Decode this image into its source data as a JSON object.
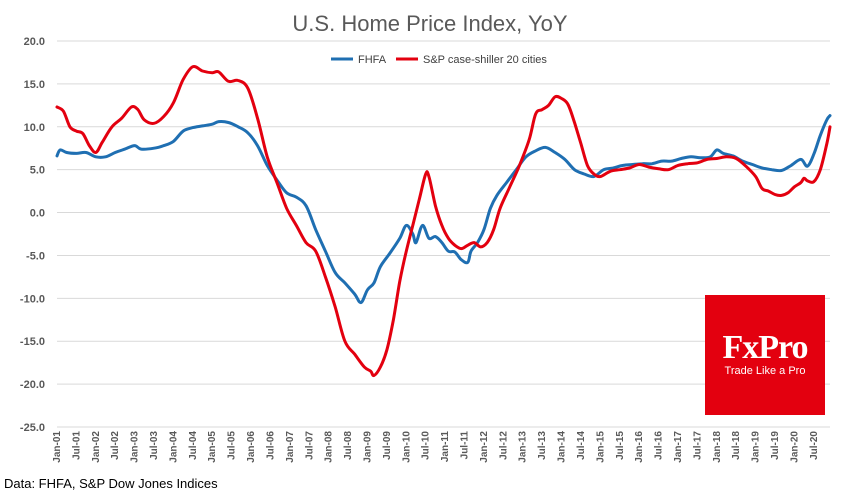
{
  "chart_data": {
    "type": "line",
    "title": "U.S. Home Price Index, YoY",
    "xlabel": "",
    "ylabel": "",
    "ylim": [
      -25,
      20
    ],
    "yticks": [
      "20.0",
      "15.0",
      "10.0",
      "5.0",
      "0.0",
      "-5.0",
      "-10.0",
      "-15.0",
      "-20.0",
      "-25.0"
    ],
    "x_start": "Jan-01",
    "x_end": "Dec-20",
    "x_tick_labels": [
      "Jan-01",
      "Jul-01",
      "Jan-02",
      "Jul-02",
      "Jan-03",
      "Jul-03",
      "Jan-04",
      "Jul-04",
      "Jan-05",
      "Jul-05",
      "Jan-06",
      "Jul-06",
      "Jan-07",
      "Jul-07",
      "Jan-08",
      "Jul-08",
      "Jan-09",
      "Jul-09",
      "Jan-10",
      "Jul-10",
      "Jan-11",
      "Jul-11",
      "Jan-12",
      "Jul-12",
      "Jan-13",
      "Jul-13",
      "Jan-14",
      "Jul-14",
      "Jan-15",
      "Jul-15",
      "Jan-16",
      "Jul-16",
      "Jan-17",
      "Jul-17",
      "Jan-18",
      "Jul-18",
      "Jan-19",
      "Jul-19",
      "Jan-20",
      "Jul-20"
    ],
    "grid": "horizontal",
    "legend_position": "top",
    "series": [
      {
        "name": "FHFA",
        "color": "#1f6fb2",
        "points": [
          [
            "Jan-01",
            6.6
          ],
          [
            "Feb-01",
            7.3
          ],
          [
            "Apr-01",
            7.0
          ],
          [
            "Jul-01",
            6.9
          ],
          [
            "Oct-01",
            7.0
          ],
          [
            "Jan-02",
            6.5
          ],
          [
            "Apr-02",
            6.5
          ],
          [
            "Jul-02",
            7.0
          ],
          [
            "Oct-02",
            7.4
          ],
          [
            "Jan-03",
            7.8
          ],
          [
            "Mar-03",
            7.4
          ],
          [
            "Jul-03",
            7.5
          ],
          [
            "Oct-03",
            7.8
          ],
          [
            "Jan-04",
            8.3
          ],
          [
            "Apr-04",
            9.5
          ],
          [
            "Jul-04",
            9.9
          ],
          [
            "Oct-04",
            10.1
          ],
          [
            "Jan-05",
            10.3
          ],
          [
            "Mar-05",
            10.6
          ],
          [
            "Jun-05",
            10.5
          ],
          [
            "Sep-05",
            10.0
          ],
          [
            "Dec-05",
            9.3
          ],
          [
            "Mar-06",
            7.8
          ],
          [
            "Jun-06",
            5.5
          ],
          [
            "Sep-06",
            3.8
          ],
          [
            "Dec-06",
            2.3
          ],
          [
            "Mar-07",
            1.8
          ],
          [
            "Jun-07",
            0.8
          ],
          [
            "Sep-07",
            -2.0
          ],
          [
            "Dec-07",
            -4.5
          ],
          [
            "Mar-08",
            -7.0
          ],
          [
            "Jun-08",
            -8.2
          ],
          [
            "Sep-08",
            -9.5
          ],
          [
            "Nov-08",
            -10.5
          ],
          [
            "Jan-09",
            -9.0
          ],
          [
            "Mar-09",
            -8.2
          ],
          [
            "May-09",
            -6.3
          ],
          [
            "Aug-09",
            -4.7
          ],
          [
            "Nov-09",
            -3.0
          ],
          [
            "Jan-10",
            -1.5
          ],
          [
            "Mar-10",
            -2.5
          ],
          [
            "Apr-10",
            -3.5
          ],
          [
            "Jun-10",
            -1.5
          ],
          [
            "Aug-10",
            -3.0
          ],
          [
            "Oct-10",
            -2.8
          ],
          [
            "Dec-10",
            -3.5
          ],
          [
            "Feb-11",
            -4.5
          ],
          [
            "Apr-11",
            -4.6
          ],
          [
            "Jun-11",
            -5.5
          ],
          [
            "Aug-11",
            -5.8
          ],
          [
            "Sep-11",
            -4.5
          ],
          [
            "Nov-11",
            -3.5
          ],
          [
            "Jan-12",
            -2.0
          ],
          [
            "Mar-12",
            0.5
          ],
          [
            "May-12",
            2.0
          ],
          [
            "Aug-12",
            3.5
          ],
          [
            "Nov-12",
            5.0
          ],
          [
            "Feb-13",
            6.5
          ],
          [
            "May-13",
            7.2
          ],
          [
            "Aug-13",
            7.6
          ],
          [
            "Nov-13",
            7.0
          ],
          [
            "Feb-14",
            6.2
          ],
          [
            "May-14",
            5.0
          ],
          [
            "Aug-14",
            4.5
          ],
          [
            "Nov-14",
            4.2
          ],
          [
            "Feb-15",
            5.0
          ],
          [
            "May-15",
            5.2
          ],
          [
            "Aug-15",
            5.5
          ],
          [
            "Nov-15",
            5.6
          ],
          [
            "Feb-16",
            5.7
          ],
          [
            "May-16",
            5.7
          ],
          [
            "Aug-16",
            6.0
          ],
          [
            "Nov-16",
            6.0
          ],
          [
            "Feb-17",
            6.3
          ],
          [
            "May-17",
            6.5
          ],
          [
            "Aug-17",
            6.4
          ],
          [
            "Nov-17",
            6.5
          ],
          [
            "Jan-18",
            7.3
          ],
          [
            "Mar-18",
            6.9
          ],
          [
            "Jun-18",
            6.6
          ],
          [
            "Sep-18",
            6.0
          ],
          [
            "Dec-18",
            5.6
          ],
          [
            "Mar-19",
            5.2
          ],
          [
            "Jun-19",
            5.0
          ],
          [
            "Sep-19",
            4.9
          ],
          [
            "Dec-19",
            5.5
          ],
          [
            "Mar-20",
            6.2
          ],
          [
            "May-20",
            5.4
          ],
          [
            "Jul-20",
            6.8
          ],
          [
            "Sep-20",
            9.0
          ],
          [
            "Nov-20",
            10.8
          ],
          [
            "Dec-20",
            11.3
          ]
        ]
      },
      {
        "name": "S&P case-shiller 20 cities",
        "color": "#e3000f",
        "points": [
          [
            "Jan-01",
            12.3
          ],
          [
            "Mar-01",
            11.8
          ],
          [
            "May-01",
            10.0
          ],
          [
            "Jul-01",
            9.5
          ],
          [
            "Sep-01",
            9.2
          ],
          [
            "Nov-01",
            7.8
          ],
          [
            "Jan-02",
            7.0
          ],
          [
            "Mar-02",
            8.2
          ],
          [
            "Jun-02",
            10.0
          ],
          [
            "Sep-02",
            11.0
          ],
          [
            "Dec-02",
            12.3
          ],
          [
            "Feb-03",
            12.0
          ],
          [
            "Apr-03",
            10.8
          ],
          [
            "Jul-03",
            10.4
          ],
          [
            "Oct-03",
            11.2
          ],
          [
            "Jan-04",
            12.8
          ],
          [
            "Apr-04",
            15.5
          ],
          [
            "Jul-04",
            17.0
          ],
          [
            "Oct-04",
            16.5
          ],
          [
            "Jan-05",
            16.3
          ],
          [
            "Mar-05",
            16.4
          ],
          [
            "Jun-05",
            15.3
          ],
          [
            "Sep-05",
            15.4
          ],
          [
            "Dec-05",
            14.5
          ],
          [
            "Mar-06",
            11.0
          ],
          [
            "Jun-06",
            6.5
          ],
          [
            "Sep-06",
            3.5
          ],
          [
            "Dec-06",
            0.5
          ],
          [
            "Mar-07",
            -1.5
          ],
          [
            "Jun-07",
            -3.5
          ],
          [
            "Sep-07",
            -4.5
          ],
          [
            "Dec-07",
            -7.5
          ],
          [
            "Mar-08",
            -11.0
          ],
          [
            "Jun-08",
            -15.0
          ],
          [
            "Sep-08",
            -16.5
          ],
          [
            "Dec-08",
            -18.0
          ],
          [
            "Feb-09",
            -18.5
          ],
          [
            "Mar-09",
            -19.0
          ],
          [
            "May-09",
            -18.0
          ],
          [
            "Jul-09",
            -16.0
          ],
          [
            "Sep-09",
            -12.5
          ],
          [
            "Nov-09",
            -8.0
          ],
          [
            "Jan-10",
            -4.5
          ],
          [
            "Mar-10",
            -1.5
          ],
          [
            "May-10",
            1.5
          ],
          [
            "Jul-10",
            4.5
          ],
          [
            "Aug-10",
            4.2
          ],
          [
            "Oct-10",
            0.8
          ],
          [
            "Dec-10",
            -1.5
          ],
          [
            "Feb-11",
            -3.0
          ],
          [
            "Apr-11",
            -3.8
          ],
          [
            "Jun-11",
            -4.2
          ],
          [
            "Aug-11",
            -3.8
          ],
          [
            "Oct-11",
            -3.5
          ],
          [
            "Dec-11",
            -4.0
          ],
          [
            "Feb-12",
            -3.5
          ],
          [
            "Apr-12",
            -2.0
          ],
          [
            "Jun-12",
            0.5
          ],
          [
            "Sep-12",
            3.0
          ],
          [
            "Dec-12",
            5.5
          ],
          [
            "Mar-13",
            8.5
          ],
          [
            "May-13",
            11.5
          ],
          [
            "Jul-13",
            12.0
          ],
          [
            "Sep-13",
            12.5
          ],
          [
            "Nov-13",
            13.5
          ],
          [
            "Jan-14",
            13.3
          ],
          [
            "Mar-14",
            12.6
          ],
          [
            "May-14",
            10.5
          ],
          [
            "Jul-14",
            8.0
          ],
          [
            "Sep-14",
            5.5
          ],
          [
            "Nov-14",
            4.5
          ],
          [
            "Jan-15",
            4.2
          ],
          [
            "Apr-15",
            4.8
          ],
          [
            "Jul-15",
            5.0
          ],
          [
            "Oct-15",
            5.2
          ],
          [
            "Jan-16",
            5.6
          ],
          [
            "Apr-16",
            5.3
          ],
          [
            "Jul-16",
            5.1
          ],
          [
            "Oct-16",
            5.0
          ],
          [
            "Jan-17",
            5.5
          ],
          [
            "Apr-17",
            5.7
          ],
          [
            "Jul-17",
            5.8
          ],
          [
            "Oct-17",
            6.2
          ],
          [
            "Jan-18",
            6.3
          ],
          [
            "Apr-18",
            6.5
          ],
          [
            "Jul-18",
            6.3
          ],
          [
            "Oct-18",
            5.4
          ],
          [
            "Jan-19",
            4.2
          ],
          [
            "Mar-19",
            2.8
          ],
          [
            "May-19",
            2.5
          ],
          [
            "Jul-19",
            2.1
          ],
          [
            "Sep-19",
            2.0
          ],
          [
            "Nov-19",
            2.3
          ],
          [
            "Jan-20",
            3.0
          ],
          [
            "Mar-20",
            3.5
          ],
          [
            "Apr-20",
            4.0
          ],
          [
            "May-20",
            3.7
          ],
          [
            "Jul-20",
            3.6
          ],
          [
            "Sep-20",
            5.0
          ],
          [
            "Nov-20",
            8.0
          ],
          [
            "Dec-20",
            10.0
          ]
        ]
      }
    ]
  },
  "source_text": "Data: FHFA, S&P Dow Jones Indices",
  "logo": {
    "name": "FxPro",
    "tagline": "Trade Like a Pro",
    "color": "#e3000f"
  }
}
